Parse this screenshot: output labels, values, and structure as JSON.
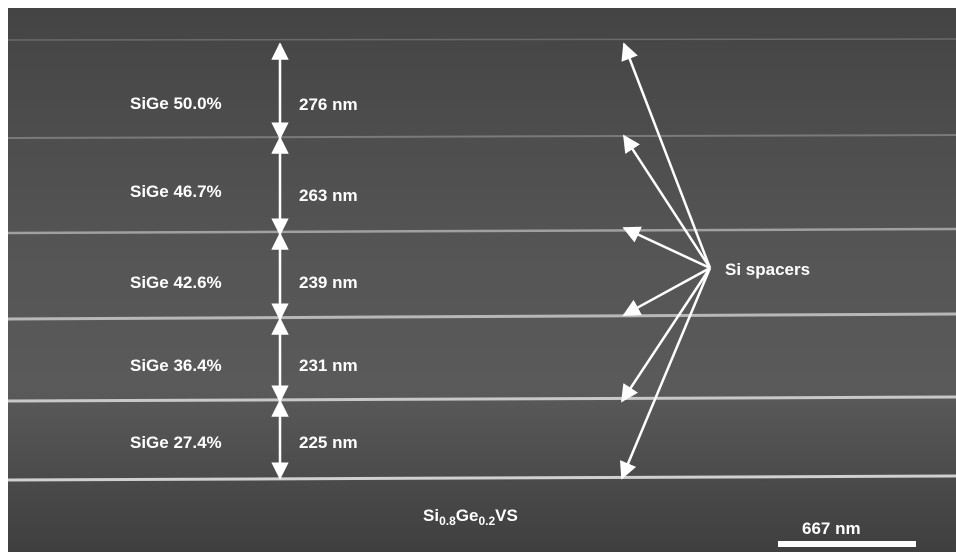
{
  "layers": [
    {
      "composition": "SiGe 50.0%",
      "thickness": "276 nm"
    },
    {
      "composition": "SiGe 46.7%",
      "thickness": "263 nm"
    },
    {
      "composition": "SiGe 42.6%",
      "thickness": "239 nm"
    },
    {
      "composition": "SiGe 36.4%",
      "thickness": "231 nm"
    },
    {
      "composition": "SiGe 27.4%",
      "thickness": "225 nm"
    }
  ],
  "spacer_label": "Si spacers",
  "substrate": {
    "si": "Si",
    "si_sub": "0.8",
    "ge": "Ge",
    "ge_sub": "0.2",
    "suffix": "VS"
  },
  "scale_bar": {
    "label": "667 nm"
  },
  "colors": {
    "annotation": "#ffffff",
    "spacer_line": "#c8c8c8"
  }
}
